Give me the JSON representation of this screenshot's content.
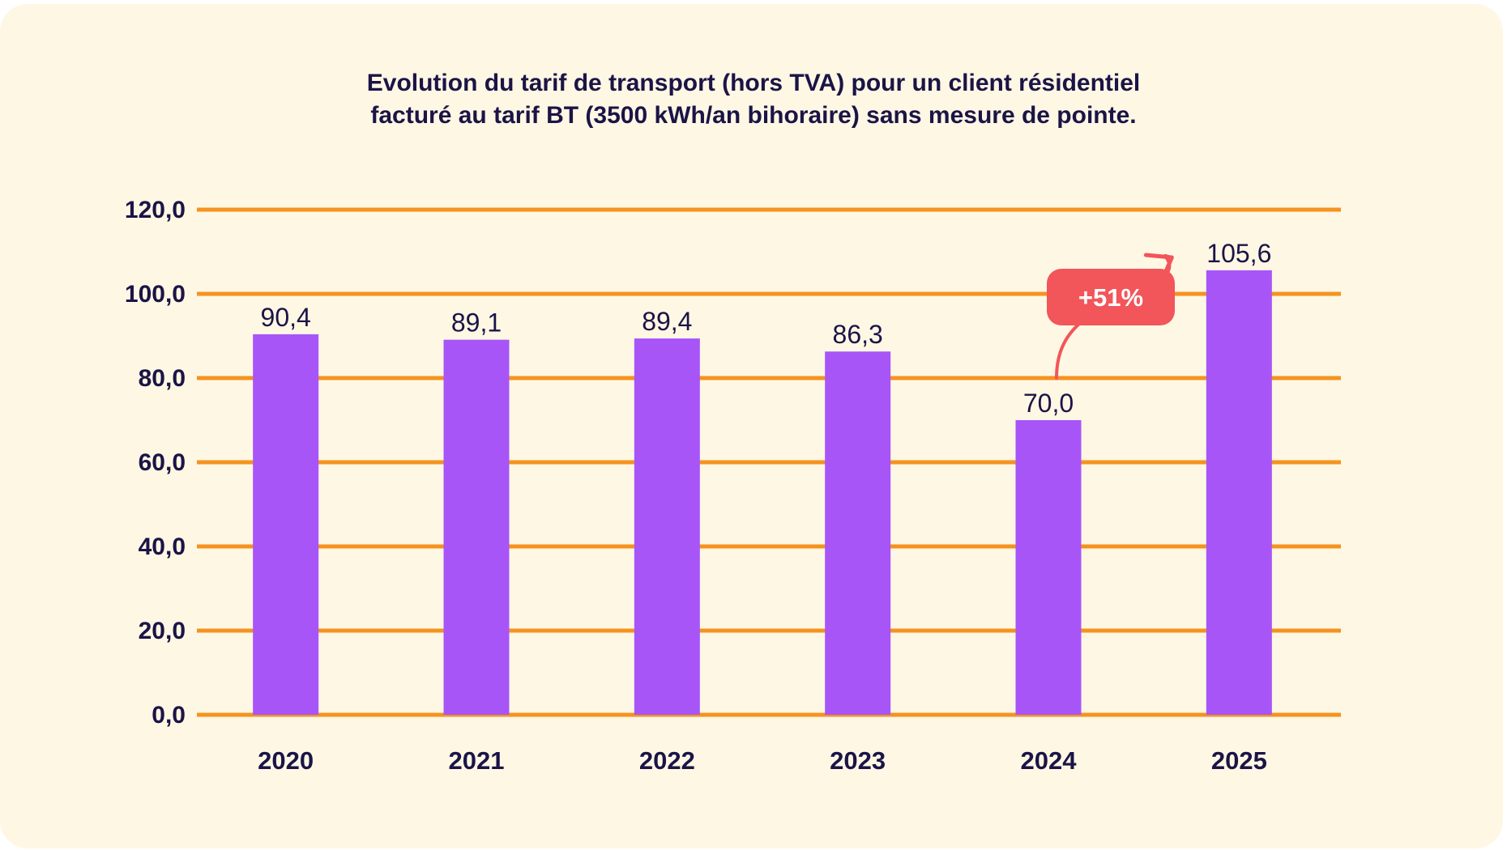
{
  "chart_data": {
    "type": "bar",
    "title_line1": "Evolution du tarif de transport (hors TVA) pour un client résidentiel",
    "title_line2": "facturé au tarif BT (3500 kWh/an bihoraire) sans mesure de pointe.",
    "categories": [
      "2020",
      "2021",
      "2022",
      "2023",
      "2024",
      "2025"
    ],
    "values": [
      90.4,
      89.1,
      89.4,
      86.3,
      70.0,
      105.6
    ],
    "value_labels": [
      "90,4",
      "89,1",
      "89,4",
      "86,3",
      "70,0",
      "105,6"
    ],
    "yticks": [
      0,
      20,
      40,
      60,
      80,
      100,
      120
    ],
    "ytick_labels": [
      "0,0",
      "20,0",
      "40,0",
      "60,0",
      "80,0",
      "100,0",
      "120,0"
    ],
    "ylim": [
      0,
      120
    ],
    "grid": true,
    "legend": "none",
    "annotation": {
      "text": "+51%",
      "from": "2024",
      "to": "2025"
    },
    "colors": {
      "bar": "#a855f7",
      "grid": "#f5931f",
      "text": "#1b1446",
      "annotation": "#f2555a",
      "background": "#fef7e4"
    }
  }
}
